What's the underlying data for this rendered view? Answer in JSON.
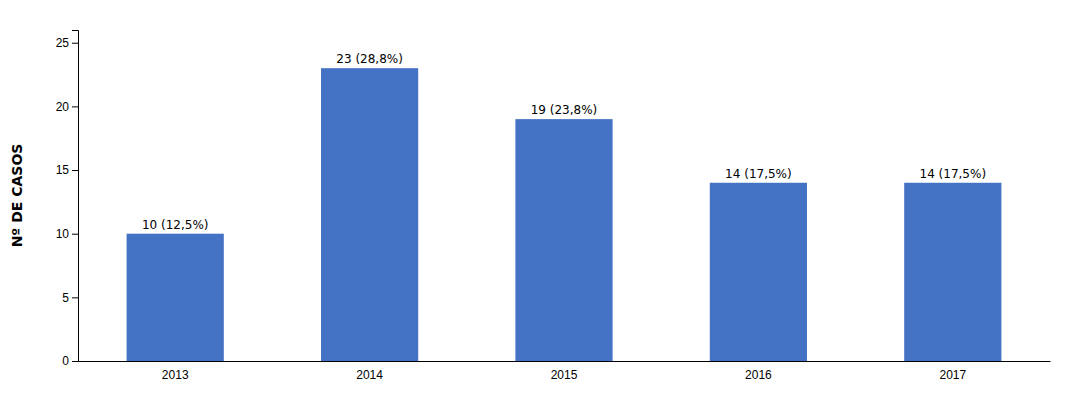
{
  "chart_data": {
    "type": "bar",
    "y_label": "Nº DE CASOS",
    "categories": [
      "2013",
      "2014",
      "2015",
      "2016",
      "2017"
    ],
    "values": [
      10,
      23,
      19,
      14,
      14
    ],
    "value_labels": [
      "10 (12,5%)",
      "23 (28,8%)",
      "19 (23,8%)",
      "14 (17,5%)",
      "14 (17,5%)"
    ],
    "data_labels": true,
    "color": "#4472C4",
    "ylim": [
      0,
      26
    ],
    "yticks": [
      0,
      5,
      10,
      15,
      20,
      25
    ],
    "grid": false
  }
}
